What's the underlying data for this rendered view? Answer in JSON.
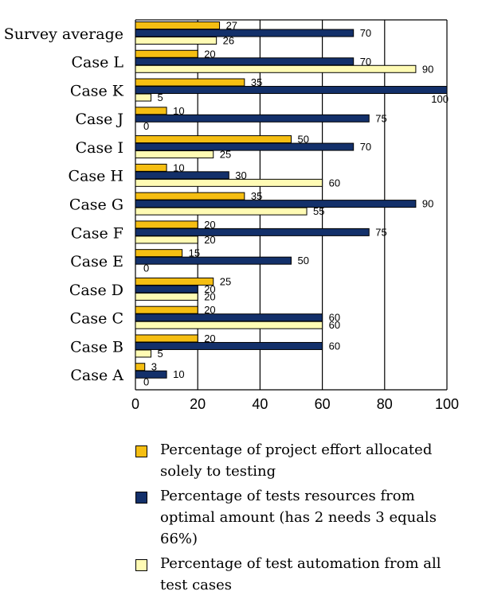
{
  "chart_data": {
    "type": "bar",
    "orientation": "horizontal",
    "categories": [
      "Survey average",
      "Case L",
      "Case K",
      "Case J",
      "Case I",
      "Case H",
      "Case G",
      "Case F",
      "Case E",
      "Case D",
      "Case C",
      "Case B",
      "Case A"
    ],
    "series": [
      {
        "name": "Percentage of project effort allocated solely to testing",
        "color": "#F5BE12",
        "values": [
          27,
          20,
          35,
          10,
          50,
          10,
          35,
          20,
          15,
          25,
          20,
          20,
          3
        ],
        "labels": [
          "27",
          "20",
          "35",
          "10",
          "50",
          "10",
          "35",
          "20",
          "15",
          "25",
          "20",
          "20",
          "3"
        ]
      },
      {
        "name": "Percentage of tests resources from optimal amount (has 2 needs 3 equals 66%)",
        "color": "#13306A",
        "values": [
          70,
          70,
          100,
          75,
          70,
          30,
          90,
          75,
          50,
          20,
          60,
          60,
          10
        ],
        "labels": [
          "70",
          "70",
          "100",
          "75",
          "70",
          "30",
          "90",
          "75",
          "50",
          "20",
          "60",
          "60",
          "10"
        ]
      },
      {
        "name": "Percentage of test automation from all test cases",
        "color": "#FFFBB4",
        "values": [
          26,
          90,
          5,
          0,
          25,
          60,
          55,
          20,
          0,
          20,
          60,
          5,
          0
        ],
        "labels": [
          "26",
          "90",
          "5",
          "0",
          "25",
          "60",
          "55",
          "20",
          "0",
          "20",
          "60",
          "5",
          "0"
        ]
      }
    ],
    "xlim": [
      0,
      100
    ],
    "xticks": [
      "0",
      "20",
      "40",
      "60",
      "80",
      "100"
    ],
    "grid": true,
    "legend_position": "bottom"
  },
  "legend": [
    {
      "text": "Percentage of project effort allocated solely to testing",
      "color": "#F5BE12"
    },
    {
      "text": "Percentage of tests resources from optimal amount (has 2 needs 3 equals 66%)",
      "color": "#13306A"
    },
    {
      "text": "Percentage of test automation from all test cases",
      "color": "#FFFBB4"
    }
  ]
}
